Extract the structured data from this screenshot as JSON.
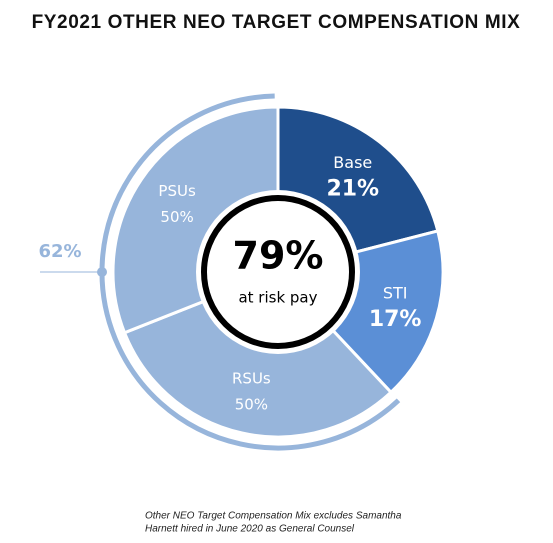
{
  "title": "FY2021 OTHER NEO TARGET COMPENSATION MIX",
  "chart_data": {
    "type": "donut",
    "categories": [
      "Base",
      "STI"
    ],
    "values": [
      21,
      17
    ],
    "value_labels": [
      "21%",
      "17%"
    ],
    "colors": [
      "#1f4e8c",
      "#5b8fd6"
    ],
    "group": {
      "value": 62,
      "value_label": "62%",
      "color": "#97b5db",
      "categories": [
        "RSUs",
        "PSUs"
      ],
      "values": [
        50,
        50
      ],
      "value_labels": [
        "50%",
        "50%"
      ]
    },
    "center": {
      "value": 79,
      "value_label": "79%",
      "label": "at risk pay"
    }
  },
  "footnote": [
    "Other NEO Target Compensation Mix excludes Samantha",
    "Harnett hired in June 2020 as General Counsel"
  ]
}
